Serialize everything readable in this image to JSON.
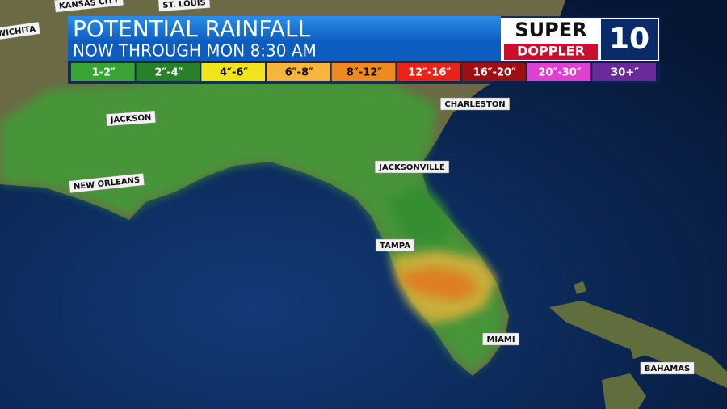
{
  "header": {
    "title": "POTENTIAL RAINFALL",
    "subtitle": "NOW THROUGH MON 8:30 AM"
  },
  "logo": {
    "line1": "SUPER",
    "line2": "DOPPLER",
    "number": "10"
  },
  "legend": [
    {
      "label": "1-2″",
      "color": "#3aa335",
      "text_color": "#ffffff"
    },
    {
      "label": "2″-4″",
      "color": "#2a7f2a",
      "text_color": "#ffffff"
    },
    {
      "label": "4″-6″",
      "color": "#f2e41c",
      "text_color": "#111111"
    },
    {
      "label": "6″-8″",
      "color": "#f6b53c",
      "text_color": "#111111"
    },
    {
      "label": "8″-12″",
      "color": "#ef8a1f",
      "text_color": "#111111"
    },
    {
      "label": "12″-16″",
      "color": "#e8231a",
      "text_color": "#ffffff"
    },
    {
      "label": "16″-20″",
      "color": "#9e0f12",
      "text_color": "#ffffff"
    },
    {
      "label": "20″-30″",
      "color": "#e040d0",
      "text_color": "#ffffff"
    },
    {
      "label": "30+″",
      "color": "#6a2a9a",
      "text_color": "#ffffff"
    }
  ],
  "cities": [
    "KANSAS CITY",
    "ST. LOUIS",
    "WICHITA",
    "JACKSON",
    "NEW ORLEANS",
    "CHARLESTON",
    "JACKSONVILLE",
    "TAMPA",
    "MIAMI",
    "BAHAMAS"
  ]
}
